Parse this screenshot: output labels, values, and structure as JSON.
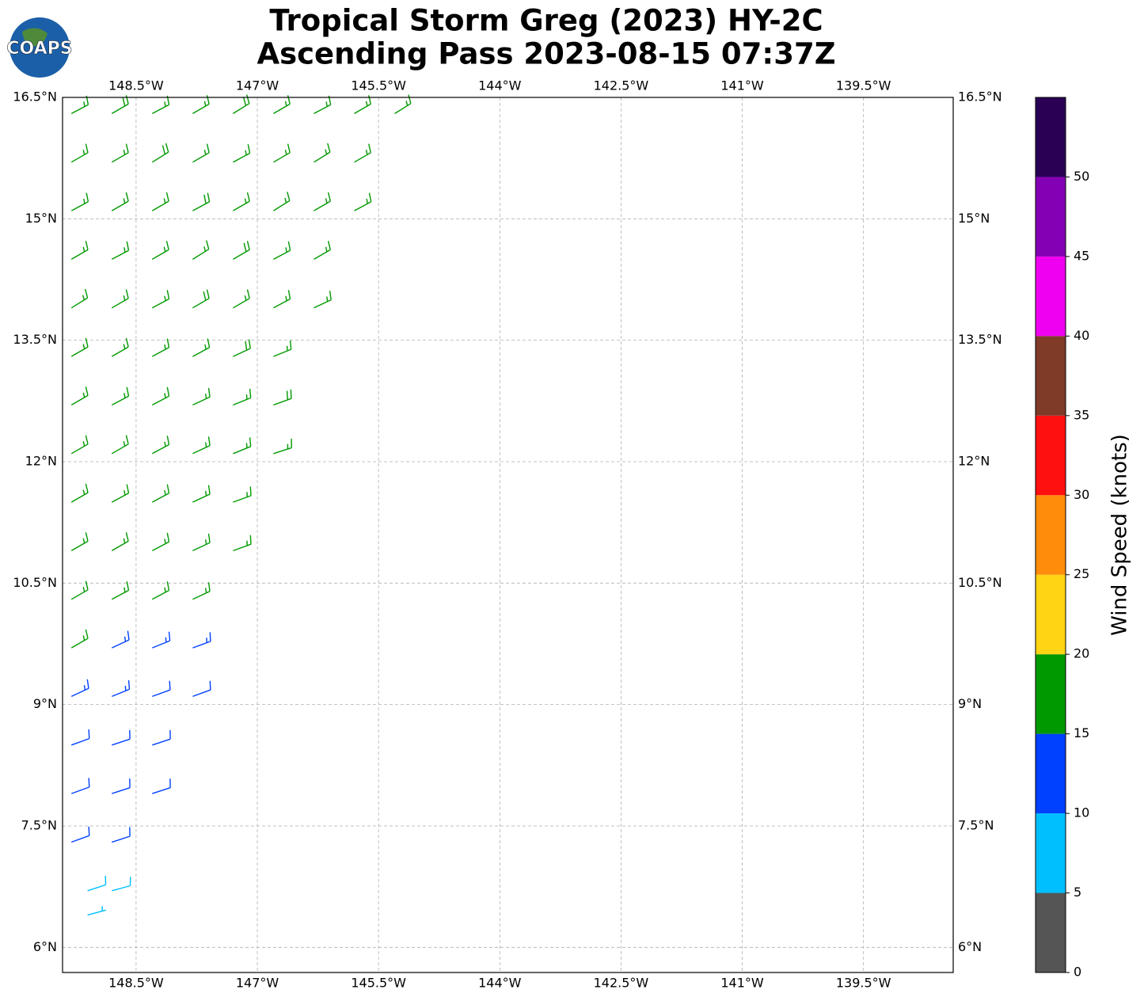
{
  "logo": "COAPS",
  "chart_data": {
    "type": "wind_barbs",
    "title": "Tropical Storm Greg (2023) HY-2C",
    "subtitle": "Ascending Pass 2023-08-15 07:37Z",
    "xlim": [
      -149.41,
      -138.39
    ],
    "ylim": [
      5.69,
      16.5
    ],
    "grid": true,
    "xticks": [
      {
        "value": -148.5,
        "label": "148.5°W"
      },
      {
        "value": -147,
        "label": "147°W"
      },
      {
        "value": -145.5,
        "label": "145.5°W"
      },
      {
        "value": -144,
        "label": "144°W"
      },
      {
        "value": -142.5,
        "label": "142.5°W"
      },
      {
        "value": -141,
        "label": "141°W"
      },
      {
        "value": -139.5,
        "label": "139.5°W"
      }
    ],
    "yticks": [
      {
        "value": 6,
        "label": "6°N"
      },
      {
        "value": 7.5,
        "label": "7.5°N"
      },
      {
        "value": 9,
        "label": "9°N"
      },
      {
        "value": 10.5,
        "label": "10.5°N"
      },
      {
        "value": 12,
        "label": "12°N"
      },
      {
        "value": 13.5,
        "label": "13.5°N"
      },
      {
        "value": 15,
        "label": "15°N"
      },
      {
        "value": 16.5,
        "label": "16.5°N"
      }
    ],
    "colorbar": {
      "label": "Wind Speed (knots)",
      "levels": [
        0,
        5,
        10,
        15,
        20,
        25,
        30,
        35,
        40,
        45,
        50,
        55
      ],
      "colors": [
        "#555555",
        "#00bfff",
        "#0040ff",
        "#009900",
        "#ffd414",
        "#ff8c0a",
        "#ff1010",
        "#7f3a28",
        "#f000f0",
        "#8400b4",
        "#2a0055"
      ],
      "ticks": [
        0,
        5,
        10,
        15,
        20,
        25,
        30,
        35,
        40,
        45,
        50
      ]
    },
    "rows": [
      {
        "lat": 16.3,
        "lon": [
          -149.3,
          -148.8,
          -148.3,
          -147.8,
          -147.3,
          -146.8,
          -146.3,
          -145.8,
          -145.3
        ],
        "speed": [
          17,
          18,
          17,
          16,
          18,
          17,
          16,
          17,
          16
        ],
        "direction": [
          62,
          60,
          62,
          60,
          58,
          60,
          62,
          60,
          58
        ]
      },
      {
        "lat": 15.7,
        "lon": [
          -149.3,
          -148.8,
          -148.3,
          -147.8,
          -147.3,
          -146.8,
          -146.3,
          -145.8
        ],
        "speed": [
          16,
          17,
          18,
          17,
          17,
          16,
          17,
          16
        ],
        "direction": [
          60,
          60,
          58,
          60,
          62,
          60,
          58,
          60
        ]
      },
      {
        "lat": 15.1,
        "lon": [
          -149.3,
          -148.8,
          -148.3,
          -147.8,
          -147.3,
          -146.8,
          -146.3,
          -145.8
        ],
        "speed": [
          17,
          16,
          17,
          18,
          17,
          17,
          16,
          17
        ],
        "direction": [
          62,
          60,
          60,
          62,
          60,
          58,
          60,
          62
        ]
      },
      {
        "lat": 14.5,
        "lon": [
          -149.3,
          -148.8,
          -148.3,
          -147.8,
          -147.3,
          -146.8,
          -146.3
        ],
        "speed": [
          17,
          17,
          16,
          17,
          18,
          17,
          16
        ],
        "direction": [
          60,
          62,
          60,
          58,
          60,
          62,
          60
        ]
      },
      {
        "lat": 13.9,
        "lon": [
          -149.3,
          -148.8,
          -148.3,
          -147.8,
          -147.3,
          -146.8,
          -146.3
        ],
        "speed": [
          16,
          17,
          17,
          18,
          17,
          16,
          17
        ],
        "direction": [
          58,
          60,
          62,
          60,
          60,
          62,
          65
        ]
      },
      {
        "lat": 13.3,
        "lon": [
          -149.3,
          -148.8,
          -148.3,
          -147.8,
          -147.3,
          -146.8
        ],
        "speed": [
          17,
          16,
          17,
          17,
          18,
          17
        ],
        "direction": [
          60,
          60,
          62,
          62,
          65,
          68
        ]
      },
      {
        "lat": 12.7,
        "lon": [
          -149.3,
          -148.8,
          -148.3,
          -147.8,
          -147.3,
          -146.8
        ],
        "speed": [
          17,
          17,
          16,
          17,
          17,
          18
        ],
        "direction": [
          60,
          62,
          62,
          65,
          68,
          70
        ]
      },
      {
        "lat": 12.1,
        "lon": [
          -149.3,
          -148.8,
          -148.3,
          -147.8,
          -147.3,
          -146.8
        ],
        "speed": [
          16,
          17,
          17,
          16,
          17,
          17
        ],
        "direction": [
          60,
          60,
          62,
          65,
          68,
          72
        ]
      },
      {
        "lat": 11.5,
        "lon": [
          -149.3,
          -148.8,
          -148.3,
          -147.8,
          -147.3
        ],
        "speed": [
          17,
          16,
          17,
          17,
          16
        ],
        "direction": [
          60,
          62,
          62,
          65,
          70
        ]
      },
      {
        "lat": 10.9,
        "lon": [
          -149.3,
          -148.8,
          -148.3,
          -147.8,
          -147.3
        ],
        "speed": [
          16,
          17,
          16,
          16,
          16
        ],
        "direction": [
          60,
          60,
          62,
          65,
          70
        ]
      },
      {
        "lat": 10.3,
        "lon": [
          -149.3,
          -148.8,
          -148.3,
          -147.8
        ],
        "speed": [
          16,
          16,
          16,
          15
        ],
        "direction": [
          60,
          62,
          62,
          65
        ]
      },
      {
        "lat": 9.7,
        "lon": [
          -149.3,
          -148.8,
          -148.3,
          -147.8
        ],
        "speed": [
          16,
          14,
          13,
          13
        ],
        "direction": [
          60,
          65,
          68,
          70
        ]
      },
      {
        "lat": 9.1,
        "lon": [
          -149.3,
          -148.8,
          -148.3,
          -147.8
        ],
        "speed": [
          13,
          13,
          12,
          12
        ],
        "direction": [
          65,
          68,
          70,
          70
        ]
      },
      {
        "lat": 8.5,
        "lon": [
          -149.3,
          -148.8,
          -148.3
        ],
        "speed": [
          12,
          12,
          12
        ],
        "direction": [
          70,
          72,
          72
        ]
      },
      {
        "lat": 7.9,
        "lon": [
          -149.3,
          -148.8,
          -148.3
        ],
        "speed": [
          12,
          11,
          11
        ],
        "direction": [
          70,
          72,
          72
        ]
      },
      {
        "lat": 7.3,
        "lon": [
          -149.3,
          -148.8
        ],
        "speed": [
          11,
          11
        ],
        "direction": [
          70,
          72
        ]
      },
      {
        "lat": 6.7,
        "lon": [
          -149.1,
          -148.8
        ],
        "speed": [
          9,
          8
        ],
        "direction": [
          72,
          75
        ]
      },
      {
        "lat": 6.4,
        "lon": [
          -149.1
        ],
        "speed": [
          7
        ],
        "direction": [
          75
        ]
      }
    ]
  }
}
